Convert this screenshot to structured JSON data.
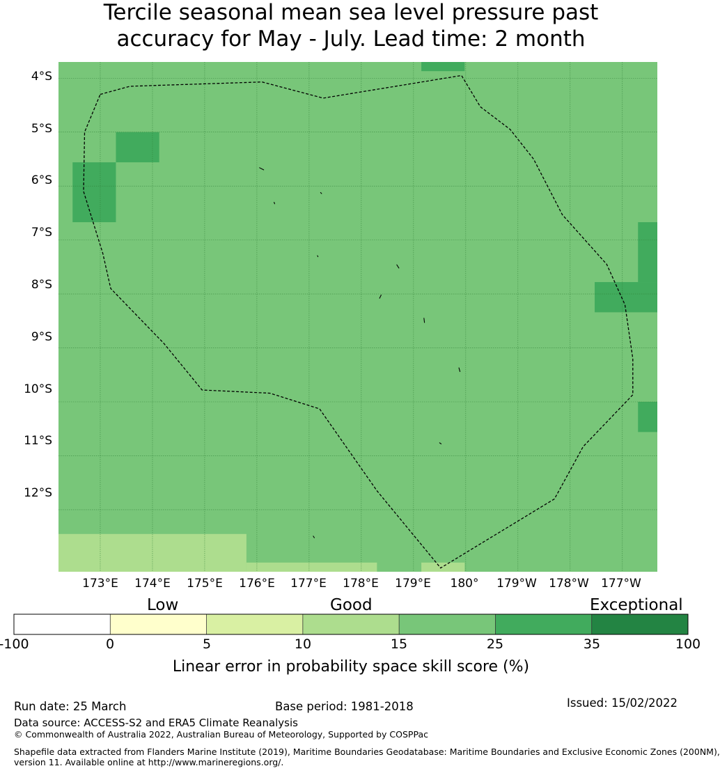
{
  "title_line1": "Tercile seasonal mean sea level pressure past",
  "title_line2": "accuracy for May - July. Lead time: 2 month",
  "colors": {
    "base": "#78c679",
    "high": "#41ab5d",
    "low": "#addd8e",
    "boundary": "#000000",
    "grid": "#2f7d35"
  },
  "map": {
    "lat_labels": [
      "4°S",
      "5°S",
      "6°S",
      "7°S",
      "8°S",
      "9°S",
      "10°S",
      "11°S",
      "12°S"
    ],
    "lon_labels": [
      "173°E",
      "174°E",
      "175°E",
      "176°E",
      "177°E",
      "178°E",
      "179°E",
      "180°",
      "179°W",
      "178°W",
      "177°W"
    ],
    "lat_values": [
      -4,
      -5,
      -6,
      -7,
      -8,
      -9,
      -10,
      -11,
      -12
    ],
    "lon_values": [
      173,
      174,
      175,
      176,
      177,
      178,
      179,
      180,
      181,
      182,
      183
    ],
    "extent": {
      "lon_min": 172.2,
      "lon_max": 183.67,
      "lat_min": -13.15,
      "lat_max": -3.7
    },
    "cells_35_plus": [
      {
        "lon": [
          179.15,
          179.98
        ],
        "lat": [
          -3.87,
          -3.7
        ]
      },
      {
        "lon": [
          173.3,
          174.13
        ],
        "lat": [
          -5.56,
          -5.0
        ]
      },
      {
        "lon": [
          172.47,
          173.3
        ],
        "lat": [
          -6.67,
          -5.56
        ]
      },
      {
        "lon": [
          183.3,
          183.67
        ],
        "lat": [
          -7.78,
          -6.67
        ]
      },
      {
        "lon": [
          182.47,
          183.67
        ],
        "lat": [
          -8.34,
          -7.78
        ]
      },
      {
        "lon": [
          183.3,
          183.67
        ],
        "lat": [
          -10.56,
          -10.0
        ]
      }
    ],
    "cells_10_15": [
      {
        "lon": [
          172.2,
          175.8
        ],
        "lat": [
          -13.15,
          -12.45
        ]
      },
      {
        "lon": [
          175.8,
          178.3
        ],
        "lat": [
          -13.15,
          -12.98
        ]
      },
      {
        "lon": [
          179.15,
          179.98
        ],
        "lat": [
          -13.15,
          -12.98
        ]
      }
    ],
    "eez_boundary": [
      [
        173.0,
        -4.3
      ],
      [
        173.57,
        -4.15
      ],
      [
        176.1,
        -4.07
      ],
      [
        177.27,
        -4.37
      ],
      [
        179.92,
        -3.95
      ],
      [
        180.28,
        -4.53
      ],
      [
        180.85,
        -4.95
      ],
      [
        181.3,
        -5.5
      ],
      [
        181.85,
        -6.53
      ],
      [
        182.7,
        -7.45
      ],
      [
        183.05,
        -8.2
      ],
      [
        183.2,
        -9.2
      ],
      [
        183.2,
        -9.87
      ],
      [
        182.25,
        -10.83
      ],
      [
        181.7,
        -11.8
      ],
      [
        179.52,
        -13.08
      ],
      [
        178.3,
        -11.65
      ],
      [
        177.2,
        -10.13
      ],
      [
        176.25,
        -9.84
      ],
      [
        174.95,
        -9.78
      ],
      [
        174.22,
        -8.92
      ],
      [
        173.2,
        -7.9
      ],
      [
        173.05,
        -7.25
      ],
      [
        172.68,
        -6.1
      ],
      [
        172.7,
        -5.0
      ],
      [
        173.0,
        -4.3
      ]
    ],
    "islands": [
      [
        [
          176.05,
          -5.66
        ],
        [
          176.13,
          -5.7
        ]
      ],
      [
        [
          177.22,
          -6.12
        ],
        [
          177.24,
          -6.14
        ]
      ],
      [
        [
          176.33,
          -6.3
        ],
        [
          176.34,
          -6.33
        ]
      ],
      [
        [
          177.16,
          -7.29
        ],
        [
          177.17,
          -7.31
        ]
      ],
      [
        [
          178.68,
          -7.46
        ],
        [
          178.72,
          -7.52
        ]
      ],
      [
        [
          178.38,
          -8.02
        ],
        [
          178.35,
          -8.08
        ]
      ],
      [
        [
          179.2,
          -8.45
        ],
        [
          179.21,
          -8.53
        ]
      ],
      [
        [
          179.87,
          -9.37
        ],
        [
          179.89,
          -9.44
        ]
      ],
      [
        [
          179.5,
          -10.76
        ],
        [
          179.53,
          -10.78
        ]
      ],
      [
        [
          177.08,
          -12.49
        ],
        [
          177.1,
          -12.52
        ]
      ]
    ]
  },
  "colorbar": {
    "categories": [
      "Low",
      "Good",
      "Exceptional"
    ],
    "ticks": [
      "-100",
      "0",
      "5",
      "10",
      "15",
      "25",
      "35",
      "100"
    ],
    "colors": [
      "#ffffff",
      "#ffffcc",
      "#d9f0a3",
      "#addd8e",
      "#78c679",
      "#41ab5d",
      "#238443"
    ],
    "label": "Linear error in probability space skill score (%)"
  },
  "footer": {
    "run_date": "Run date: 25 March",
    "base_period": "Base period: 1981-2018",
    "issued": "Issued: 15/02/2022",
    "data_source": "Data source: ACCESS-S2 and ERA5 Climate Reanalysis",
    "copyright": "© Commonwealth of Australia 2022, Australian Bureau of Meteorology, Supported by COSPPac",
    "shapefile_line1": "Shapefile data extracted from Flanders Marine Institute (2019), Maritime Boundaries Geodatabase: Maritime Boundaries and Exclusive Economic Zones (200NM),",
    "shapefile_line2": "version 11. Available online at http://www.marineregions.org/."
  }
}
